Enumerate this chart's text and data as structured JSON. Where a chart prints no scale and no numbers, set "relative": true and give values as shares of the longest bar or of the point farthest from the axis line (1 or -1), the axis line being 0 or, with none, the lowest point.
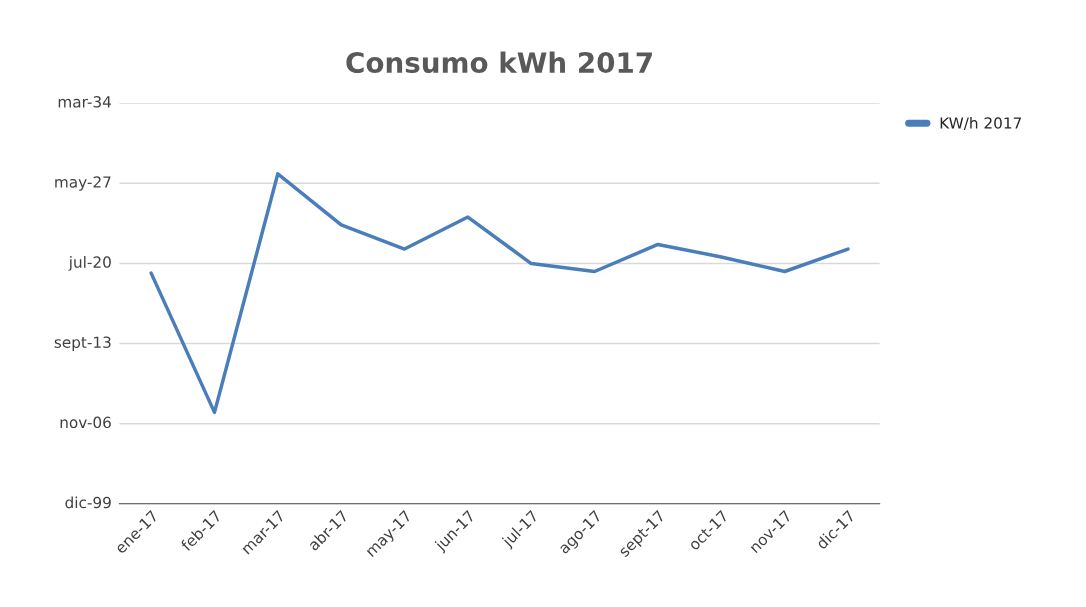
{
  "chart_data": {
    "type": "line",
    "title": "Consumo kWh 2017",
    "relative": true,
    "categories": [
      "ene-17",
      "feb-17",
      "mar-17",
      "abr-17",
      "may-17",
      "jun-17",
      "jul-17",
      "ago-17",
      "sept-17",
      "oct-17",
      "nov-17",
      "dic-17"
    ],
    "series": [
      {
        "name": "KW/h 2017",
        "color": "#4a7ebb",
        "values": [
          0.699,
          0.277,
          1.0,
          0.845,
          0.772,
          0.869,
          0.728,
          0.704,
          0.786,
          0.748,
          0.704,
          0.772
        ]
      }
    ],
    "ylim": [
      0,
      1.214
    ],
    "annotations": [
      "dic-99",
      "nov-06",
      "sept-13",
      "jul-20",
      "may-27",
      "mar-34"
    ],
    "grid": "y",
    "legend": "right",
    "marker": "none",
    "line_style": "solid"
  }
}
